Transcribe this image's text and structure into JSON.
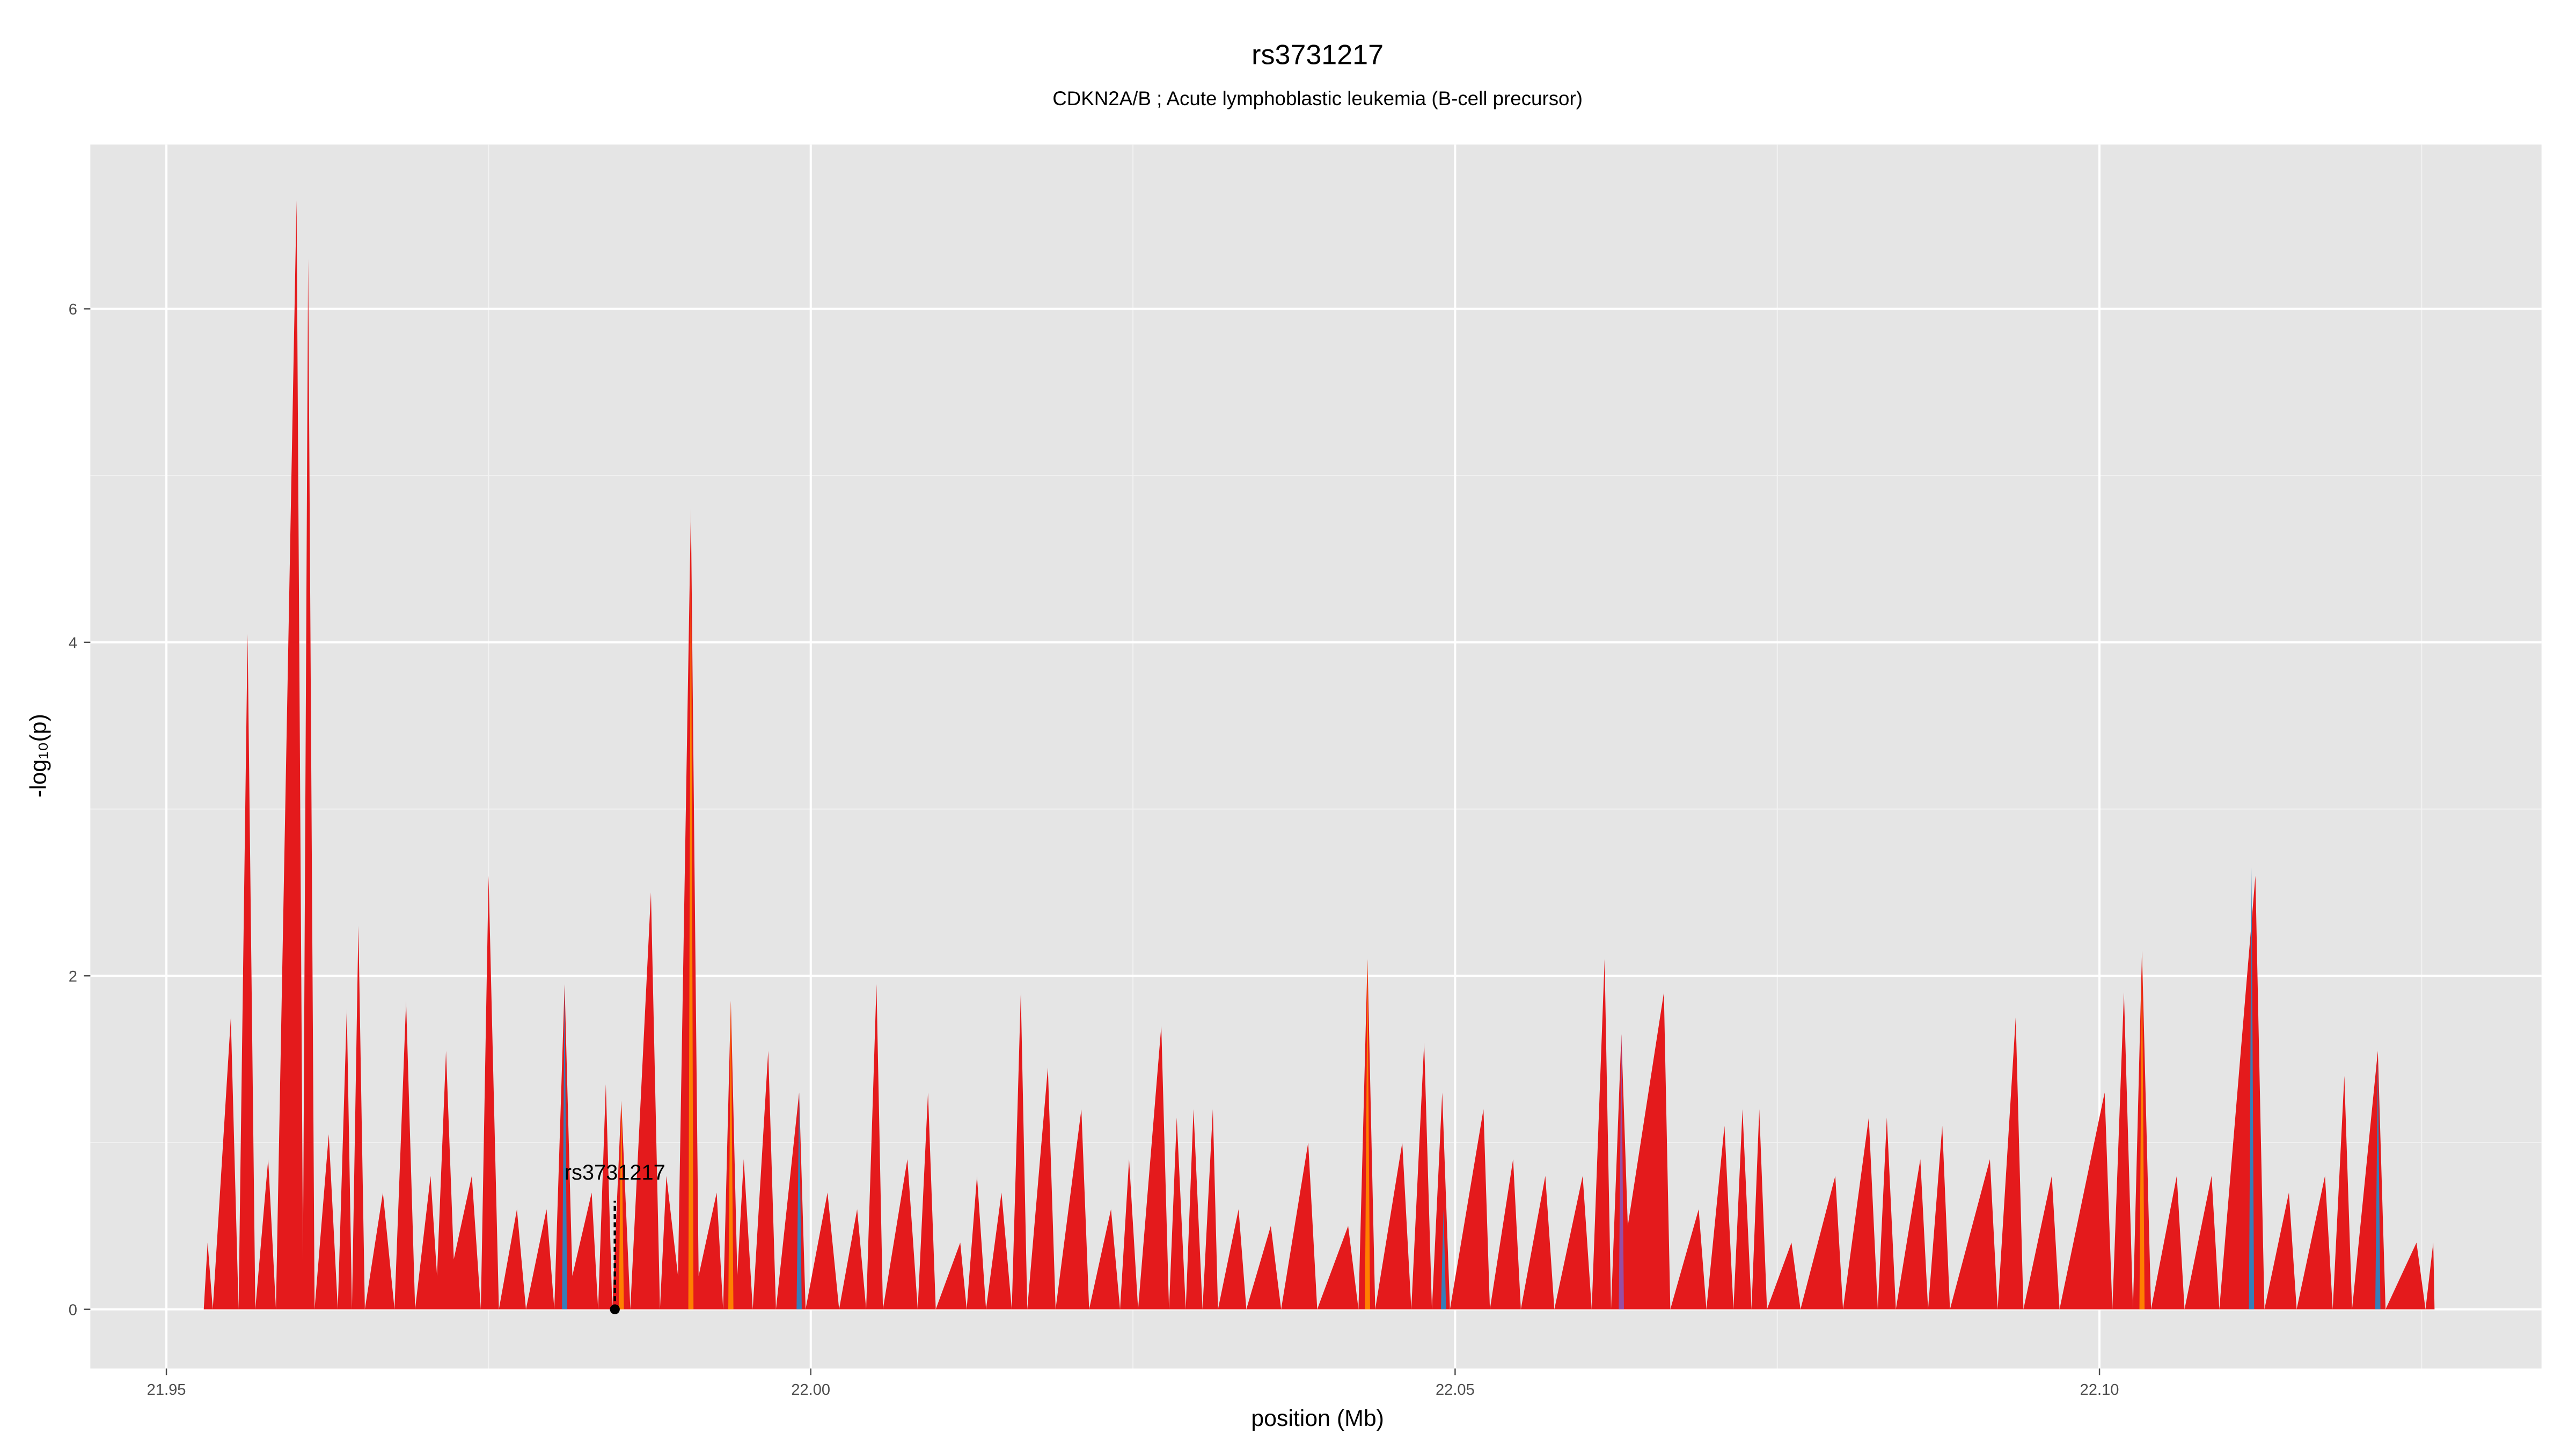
{
  "chart_data": {
    "type": "area",
    "title": "rs3731217",
    "subtitle": "CDKN2A/B ; Acute lymphoblastic leukemia (B-cell precursor)",
    "xlabel": "position (Mb)",
    "ylabel": "-log₁₀(p)",
    "xlim": [
      21.9441,
      22.1343
    ],
    "ylim": [
      -0.355,
      6.985
    ],
    "xticks": [
      21.95,
      {
        "value": 22,
        "label": "22.00"
      },
      22.05,
      {
        "value": 22.1,
        "label": "22.10"
      }
    ],
    "yticks": [
      0,
      2,
      4,
      6
    ],
    "x_minor_ticks": [
      21.975,
      22.025,
      22.075,
      22.125
    ],
    "y_minor_ticks": [
      1,
      3,
      5
    ],
    "grid": true,
    "series": [
      {
        "color": "#e41a1c",
        "x": [
          21.9529,
          21.9532,
          21.9536,
          21.955,
          21.9556,
          21.9563,
          21.9569,
          21.9579,
          21.9585,
          21.9601,
          21.9606,
          21.961,
          21.9615,
          21.9626,
          21.9633,
          21.964,
          21.9644,
          21.9649,
          21.9654,
          21.9668,
          21.9677,
          21.9686,
          21.9693,
          21.9705,
          21.971,
          21.9717,
          21.9723,
          21.9737,
          21.9744,
          21.975,
          21.9758,
          21.9772,
          21.9779,
          21.9795,
          21.9801,
          21.9809,
          21.9815,
          21.983,
          21.9835,
          21.9841,
          21.9846,
          21.9853,
          21.986,
          21.9876,
          21.9883,
          21.9888,
          21.9897,
          21.9907,
          21.9913,
          21.9927,
          21.9932,
          21.9938,
          21.9943,
          21.9948,
          21.9955,
          21.9967,
          21.9973,
          21.9991,
          21.9996,
          22.0013,
          22.0022,
          22.0036,
          22.0043,
          22.0051,
          22.0056,
          22.0075,
          22.0083,
          22.0091,
          22.0097,
          22.0116,
          22.0121,
          22.0129,
          22.0136,
          22.0148,
          22.0156,
          22.0163,
          22.0168,
          22.0184,
          22.019,
          22.021,
          22.0216,
          22.0233,
          22.024,
          22.0247,
          22.0254,
          22.0272,
          22.0278,
          22.0284,
          22.0291,
          22.0297,
          22.0304,
          22.0312,
          22.0316,
          22.0332,
          22.0338,
          22.0357,
          22.0365,
          22.0386,
          22.0393,
          22.0417,
          22.0425,
          22.0432,
          22.0438,
          22.0459,
          22.0466,
          22.0476,
          22.0482,
          22.049,
          22.0496,
          22.0522,
          22.0527,
          22.0545,
          22.0551,
          22.057,
          22.0577,
          22.0599,
          22.0606,
          22.0616,
          22.0621,
          22.0629,
          22.0634,
          22.0662,
          22.0667,
          22.0689,
          22.0695,
          22.0709,
          22.0716,
          22.0723,
          22.073,
          22.0736,
          22.0742,
          22.0761,
          22.0768,
          22.0795,
          22.0801,
          22.0821,
          22.0828,
          22.0835,
          22.0842,
          22.0861,
          22.0867,
          22.0878,
          22.0884,
          22.0915,
          22.0921,
          22.0935,
          22.0941,
          22.0963,
          22.0969,
          22.1004,
          22.101,
          22.1019,
          22.1026,
          22.1033,
          22.104,
          22.106,
          22.1066,
          22.1087,
          22.1093,
          22.1121,
          22.1128,
          22.1147,
          22.1153,
          22.1175,
          22.1181,
          22.119,
          22.1196,
          22.1216,
          22.1222,
          22.1246,
          22.1253,
          22.1259,
          22.126
        ],
        "values": [
          0,
          0.4,
          0,
          1.75,
          0,
          4.05,
          0,
          0.9,
          0,
          6.65,
          0.3,
          6.3,
          0,
          1.05,
          0,
          1.8,
          0,
          2.3,
          0,
          0.7,
          0,
          1.85,
          0,
          0.8,
          0.2,
          1.55,
          0.3,
          0.8,
          0,
          2.6,
          0,
          0.6,
          0,
          0.6,
          0,
          1.95,
          0.2,
          0.7,
          0,
          1.35,
          0,
          1.25,
          0,
          2.5,
          0,
          0.8,
          0.2,
          4.8,
          0.2,
          0.7,
          0,
          1.85,
          0.2,
          0.9,
          0,
          1.55,
          0,
          1.3,
          0,
          0.7,
          0,
          0.6,
          0,
          1.95,
          0,
          0.9,
          0,
          1.3,
          0,
          0.4,
          0,
          0.8,
          0,
          0.7,
          0,
          1.9,
          0,
          1.45,
          0,
          1.2,
          0,
          0.6,
          0,
          0.9,
          0,
          1.7,
          0,
          1.15,
          0,
          1.2,
          0,
          1.2,
          0,
          0.6,
          0,
          0.5,
          0,
          1.0,
          0,
          0.5,
          0,
          2.1,
          0,
          1.0,
          0,
          1.6,
          0,
          1.3,
          0,
          1.2,
          0,
          0.9,
          0,
          0.8,
          0,
          0.8,
          0,
          2.1,
          0,
          1.65,
          0.5,
          1.9,
          0,
          0.6,
          0,
          1.1,
          0,
          1.2,
          0,
          1.2,
          0,
          0.4,
          0,
          0.8,
          0,
          1.15,
          0,
          1.15,
          0,
          0.9,
          0,
          1.1,
          0,
          0.9,
          0,
          1.75,
          0,
          0.8,
          0,
          1.3,
          0,
          1.9,
          0,
          2.15,
          0,
          0.8,
          0,
          0.8,
          0,
          2.6,
          0,
          0.7,
          0,
          0.8,
          0,
          1.4,
          0,
          1.55,
          0,
          0.4,
          0,
          0.4,
          0
        ]
      },
      {
        "color": "#ff7f00",
        "x": [
          21.9851,
          21.9853,
          21.9855,
          21.9905,
          21.9907,
          21.9909,
          21.9936,
          21.9938,
          21.994,
          22.043,
          22.0432,
          22.0434,
          22.1031,
          22.1033,
          22.1035
        ],
        "values": [
          0,
          1.25,
          0,
          0,
          4.8,
          0,
          0,
          1.85,
          0,
          0,
          2.1,
          0,
          0,
          2.15,
          0
        ]
      },
      {
        "color": "#377eb8",
        "x": [
          21.9807,
          21.9809,
          21.9811,
          21.9989,
          21.9991,
          21.9993,
          22.0489,
          22.0491,
          22.0493,
          22.1116,
          22.1118,
          22.112,
          22.1214,
          22.1216,
          22.1218
        ],
        "values": [
          0,
          1.95,
          0,
          0,
          1.3,
          0,
          0,
          0.6,
          0,
          0,
          2.65,
          0,
          0,
          1.5,
          0
        ]
      },
      {
        "color": "#984ea3",
        "x": [
          22.0627,
          22.0629,
          22.0631
        ],
        "values": [
          0,
          1.65,
          0
        ]
      }
    ],
    "annotation": {
      "text": "rs3731217",
      "x": 21.9848,
      "y": 0
    }
  }
}
